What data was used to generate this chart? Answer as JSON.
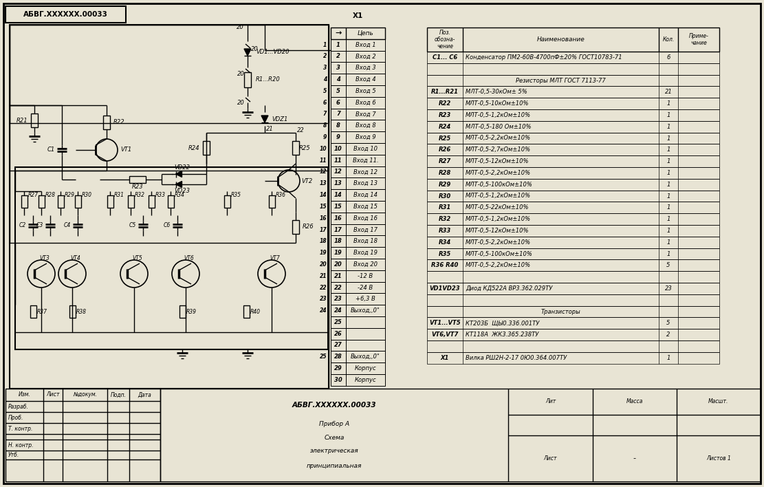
{
  "bg_color": "#ffffff",
  "line_color": "#000000",
  "connector_rows": [
    [
      "1",
      "Вход 1"
    ],
    [
      "2",
      "Вход 2"
    ],
    [
      "3",
      "Вход 3"
    ],
    [
      "4",
      "Вход 4"
    ],
    [
      "5",
      "Вход 5"
    ],
    [
      "6",
      "Вход 6"
    ],
    [
      "7",
      "Вход 7"
    ],
    [
      "8",
      "Вход 8"
    ],
    [
      "9",
      "Вход 9"
    ],
    [
      "10",
      "Вход 10"
    ],
    [
      "11",
      "Вход 11."
    ],
    [
      "12",
      "Вход 12"
    ],
    [
      "13",
      "Вход 13"
    ],
    [
      "14",
      "Вход 14"
    ],
    [
      "15",
      "Вход 15"
    ],
    [
      "16",
      "Вход 16"
    ],
    [
      "17",
      "Вход 17"
    ],
    [
      "18",
      "Вход 18"
    ],
    [
      "19",
      "Вход 19"
    ],
    [
      "20",
      "Вход 20"
    ],
    [
      "21",
      "-12 В"
    ],
    [
      "22",
      "-24 В"
    ],
    [
      "23",
      "+6,3 В"
    ],
    [
      "24",
      "Выход,,0\""
    ],
    [
      "25",
      ""
    ],
    [
      "26",
      ""
    ],
    [
      "27",
      ""
    ],
    [
      "28",
      "Выход,,0\""
    ],
    [
      "29",
      "Корпус"
    ],
    [
      "30",
      "Корпус"
    ]
  ],
  "table_rows": [
    [
      "C1... C6",
      "Конденсатор ПМ2-60В-4700пФ±20% ГОСТ10783-71",
      "6",
      ""
    ],
    [
      "",
      "",
      "",
      ""
    ],
    [
      "",
      "Резисторы МЛТ ГОСТ 7113-77",
      "",
      ""
    ],
    [
      "R1...R21",
      "МЛТ-0,5-30кОм± 5%",
      "21",
      ""
    ],
    [
      "R22",
      "МЛТ-0,5-10кОм±10%",
      "1",
      ""
    ],
    [
      "R23",
      "МЛТ-0,5-1,2кОм±10%",
      "1",
      ""
    ],
    [
      "R24",
      "МЛТ-0,5-180 Ом±10%",
      "1",
      ""
    ],
    [
      "R25",
      "МЛТ-0,5-2,2кОм±10%",
      "1",
      ""
    ],
    [
      "R26",
      "МЛТ-0,5-2,7кОм±10%",
      "1",
      ""
    ],
    [
      "R27",
      "МЛТ-0,5-12кОм±10%",
      "1",
      ""
    ],
    [
      "R28",
      "МЛТ-0,5-2,2кОм±10%",
      "1",
      ""
    ],
    [
      "R29",
      "МЛТ-0,5-100кОм±10%",
      "1",
      ""
    ],
    [
      "R30",
      "МЛТ-0,5-1,2кОм±10%",
      "1",
      ""
    ],
    [
      "R31",
      "МЛТ-0,5-22кОм±10%",
      "1",
      ""
    ],
    [
      "R32",
      "МЛТ-0,5-1,2кОм±10%",
      "1",
      ""
    ],
    [
      "R33",
      "МЛТ-0,5-12кОм±10%",
      "1",
      ""
    ],
    [
      "R34",
      "МЛТ-0,5-2,2кОм±10%",
      "1",
      ""
    ],
    [
      "R35",
      "МЛТ-0,5-100кОм±10%",
      "1",
      ""
    ],
    [
      "R36 R40",
      "МЛТ-0,5-2,2кОм±10%",
      "5",
      ""
    ],
    [
      "",
      "",
      "",
      ""
    ],
    [
      "VD1VD23",
      "Диод КД522А ВР3.362.029ТУ",
      "23",
      ""
    ],
    [
      "",
      "",
      "",
      ""
    ],
    [
      "",
      "Транзисторы",
      "",
      ""
    ],
    [
      "VT1...VT5",
      "КТ203Б  ЩЫ0.336.001ТУ",
      "5",
      ""
    ],
    [
      "VT6,VT7",
      "КТ118А  ЖК3.365.238ТУ",
      "2",
      ""
    ],
    [
      "",
      "",
      "",
      ""
    ],
    [
      "X1",
      "Вилка РШ2Н-2-17 0Ю0.364.007ТУ",
      "1",
      ""
    ]
  ],
  "stamp_rows": [
    "Изм.",
    "Разраб.",
    "Проб.",
    "Т. контр.",
    "",
    "Н. контр.",
    "Утб."
  ]
}
